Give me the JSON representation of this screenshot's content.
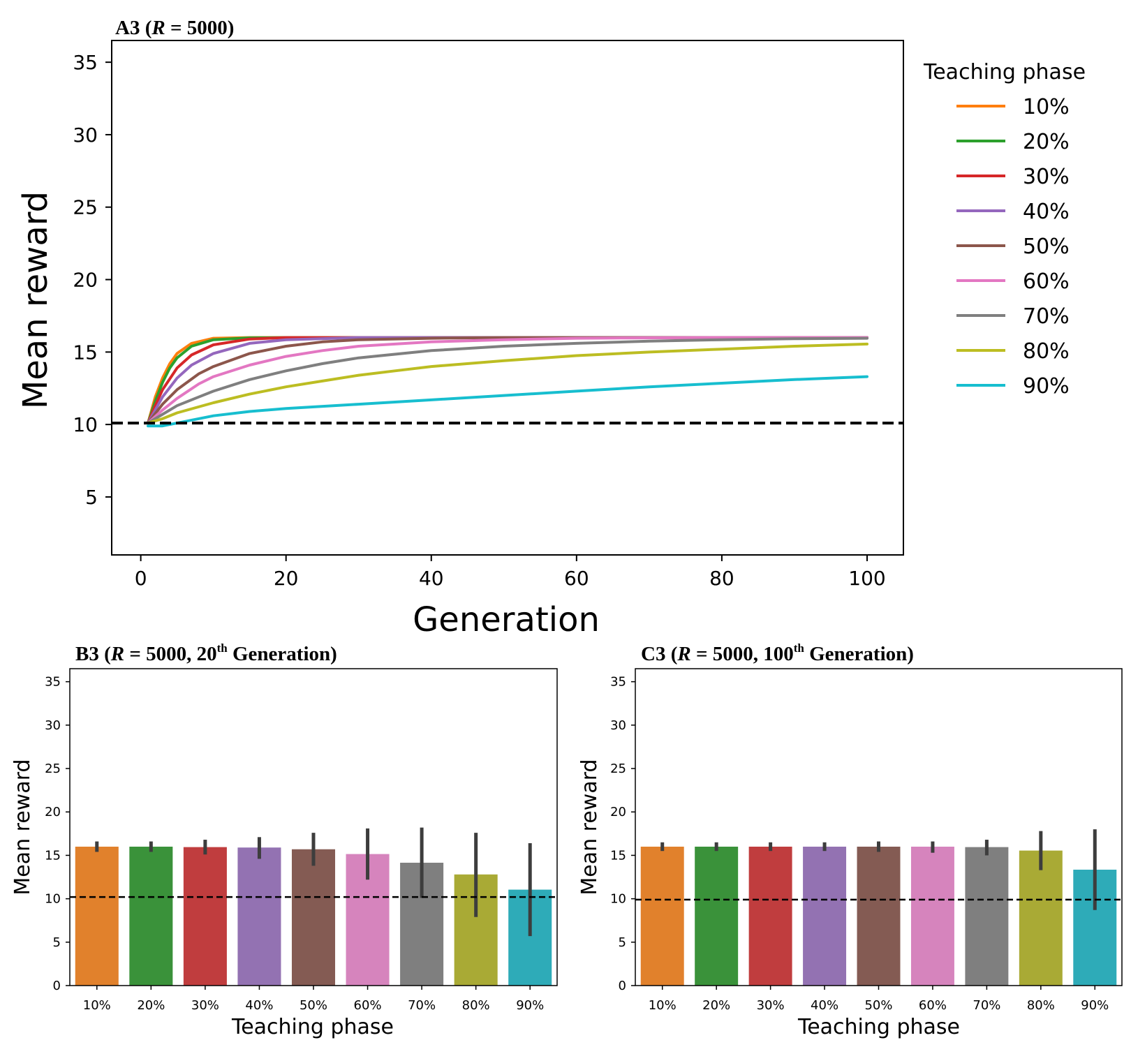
{
  "colors": {
    "series": [
      "#ff7f0e",
      "#2ca02c",
      "#d62728",
      "#9467bd",
      "#8c564b",
      "#e377c2",
      "#7f7f7f",
      "#bcbd22",
      "#17becf"
    ],
    "bars": [
      "#e1812c",
      "#3a923a",
      "#c03d3e",
      "#9372b2",
      "#845b53",
      "#d684bd",
      "#7f7f7f",
      "#a9aa35",
      "#2eabb8"
    ],
    "error_bar": "#3d3d3d",
    "baseline": "#000000"
  },
  "chart_data": [
    {
      "type": "line",
      "title_prefix": "A3 (",
      "title_italic": "R",
      "title_suffix": " = 5000)",
      "xlabel": "Generation",
      "ylabel": "Mean reward",
      "xlim": [
        -4,
        105
      ],
      "ylim": [
        1,
        36.5
      ],
      "xticks": [
        0,
        20,
        40,
        60,
        80,
        100
      ],
      "yticks": [
        5,
        10,
        15,
        20,
        25,
        30,
        35
      ],
      "baseline": 10.1,
      "legend_title": "Teaching phase",
      "legend_position": "outside-right",
      "grid": false,
      "series": [
        {
          "name": "10%",
          "points": [
            [
              1,
              10.1
            ],
            [
              2,
              11.9
            ],
            [
              3,
              13.2
            ],
            [
              4,
              14.2
            ],
            [
              5,
              14.9
            ],
            [
              7,
              15.6
            ],
            [
              10,
              15.95
            ],
            [
              15,
              16.0
            ],
            [
              100,
              16.0
            ]
          ]
        },
        {
          "name": "20%",
          "points": [
            [
              1,
              10.1
            ],
            [
              2,
              11.6
            ],
            [
              3,
              12.9
            ],
            [
              4,
              13.9
            ],
            [
              5,
              14.6
            ],
            [
              7,
              15.4
            ],
            [
              10,
              15.85
            ],
            [
              15,
              15.98
            ],
            [
              20,
              16.0
            ],
            [
              100,
              16.0
            ]
          ]
        },
        {
          "name": "30%",
          "points": [
            [
              1,
              10.1
            ],
            [
              2,
              11.3
            ],
            [
              3,
              12.4
            ],
            [
              5,
              13.9
            ],
            [
              7,
              14.8
            ],
            [
              10,
              15.5
            ],
            [
              15,
              15.9
            ],
            [
              20,
              16.0
            ],
            [
              100,
              16.0
            ]
          ]
        },
        {
          "name": "40%",
          "points": [
            [
              1,
              10.1
            ],
            [
              2,
              11.0
            ],
            [
              3,
              11.9
            ],
            [
              5,
              13.2
            ],
            [
              7,
              14.1
            ],
            [
              10,
              14.9
            ],
            [
              15,
              15.6
            ],
            [
              20,
              15.85
            ],
            [
              30,
              16.0
            ],
            [
              100,
              16.0
            ]
          ]
        },
        {
          "name": "50%",
          "points": [
            [
              1,
              10.1
            ],
            [
              3,
              11.4
            ],
            [
              5,
              12.4
            ],
            [
              8,
              13.5
            ],
            [
              10,
              14.0
            ],
            [
              15,
              14.9
            ],
            [
              20,
              15.4
            ],
            [
              25,
              15.7
            ],
            [
              30,
              15.85
            ],
            [
              40,
              15.95
            ],
            [
              50,
              16.0
            ],
            [
              100,
              16.0
            ]
          ]
        },
        {
          "name": "60%",
          "points": [
            [
              1,
              10.1
            ],
            [
              3,
              11.0
            ],
            [
              5,
              11.8
            ],
            [
              8,
              12.8
            ],
            [
              10,
              13.3
            ],
            [
              15,
              14.1
            ],
            [
              20,
              14.7
            ],
            [
              25,
              15.1
            ],
            [
              30,
              15.4
            ],
            [
              40,
              15.7
            ],
            [
              50,
              15.85
            ],
            [
              60,
              15.95
            ],
            [
              80,
              16.0
            ],
            [
              100,
              16.0
            ]
          ]
        },
        {
          "name": "70%",
          "points": [
            [
              1,
              10.1
            ],
            [
              3,
              10.7
            ],
            [
              5,
              11.3
            ],
            [
              8,
              11.9
            ],
            [
              10,
              12.3
            ],
            [
              15,
              13.1
            ],
            [
              20,
              13.7
            ],
            [
              25,
              14.2
            ],
            [
              30,
              14.6
            ],
            [
              40,
              15.1
            ],
            [
              50,
              15.4
            ],
            [
              60,
              15.6
            ],
            [
              70,
              15.75
            ],
            [
              80,
              15.85
            ],
            [
              90,
              15.92
            ],
            [
              100,
              15.95
            ]
          ]
        },
        {
          "name": "80%",
          "points": [
            [
              1,
              10.1
            ],
            [
              3,
              10.4
            ],
            [
              5,
              10.8
            ],
            [
              10,
              11.5
            ],
            [
              15,
              12.1
            ],
            [
              20,
              12.6
            ],
            [
              25,
              13.0
            ],
            [
              30,
              13.4
            ],
            [
              35,
              13.7
            ],
            [
              40,
              14.0
            ],
            [
              50,
              14.4
            ],
            [
              60,
              14.75
            ],
            [
              70,
              15.0
            ],
            [
              80,
              15.2
            ],
            [
              90,
              15.4
            ],
            [
              100,
              15.55
            ]
          ]
        },
        {
          "name": "90%",
          "points": [
            [
              1,
              9.9
            ],
            [
              3,
              9.9
            ],
            [
              5,
              10.1
            ],
            [
              10,
              10.6
            ],
            [
              15,
              10.9
            ],
            [
              20,
              11.1
            ],
            [
              30,
              11.4
            ],
            [
              40,
              11.7
            ],
            [
              50,
              12.0
            ],
            [
              60,
              12.3
            ],
            [
              70,
              12.6
            ],
            [
              80,
              12.85
            ],
            [
              90,
              13.1
            ],
            [
              100,
              13.3
            ]
          ]
        }
      ]
    },
    {
      "type": "bar",
      "title_prefix": "B3 (",
      "title_italic": "R",
      "title_middle": " = 5000, 20",
      "title_sup": "th",
      "title_suffix": " Generation)",
      "xlabel": "Teaching phase",
      "ylabel": "Mean reward",
      "ylim": [
        0,
        36.5
      ],
      "yticks": [
        0,
        5,
        10,
        15,
        20,
        25,
        30,
        35
      ],
      "baseline": 10.2,
      "categories": [
        "10%",
        "20%",
        "30%",
        "40%",
        "50%",
        "60%",
        "70%",
        "80%",
        "90%"
      ],
      "values": [
        16.0,
        16.0,
        15.95,
        15.9,
        15.7,
        15.15,
        14.15,
        12.8,
        11.05
      ],
      "errors": [
        [
          15.4,
          16.6
        ],
        [
          15.4,
          16.6
        ],
        [
          15.1,
          16.8
        ],
        [
          14.6,
          17.1
        ],
        [
          13.8,
          17.6
        ],
        [
          12.2,
          18.1
        ],
        [
          10.1,
          18.2
        ],
        [
          7.9,
          17.6
        ],
        [
          5.7,
          16.4
        ]
      ]
    },
    {
      "type": "bar",
      "title_prefix": "C3 (",
      "title_italic": "R",
      "title_middle": " = 5000, 100",
      "title_sup": "th",
      "title_suffix": " Generation)",
      "xlabel": "Teaching phase",
      "ylabel": "Mean reward",
      "ylim": [
        0,
        36.5
      ],
      "yticks": [
        0,
        5,
        10,
        15,
        20,
        25,
        30,
        35
      ],
      "baseline": 9.9,
      "categories": [
        "10%",
        "20%",
        "30%",
        "40%",
        "50%",
        "60%",
        "70%",
        "80%",
        "90%"
      ],
      "values": [
        16.0,
        16.0,
        16.0,
        16.0,
        16.0,
        16.0,
        15.95,
        15.55,
        13.35
      ],
      "errors": [
        [
          15.5,
          16.5
        ],
        [
          15.5,
          16.5
        ],
        [
          15.5,
          16.5
        ],
        [
          15.5,
          16.5
        ],
        [
          15.4,
          16.6
        ],
        [
          15.3,
          16.6
        ],
        [
          15.0,
          16.8
        ],
        [
          13.3,
          17.8
        ],
        [
          8.7,
          18.0
        ]
      ]
    }
  ]
}
